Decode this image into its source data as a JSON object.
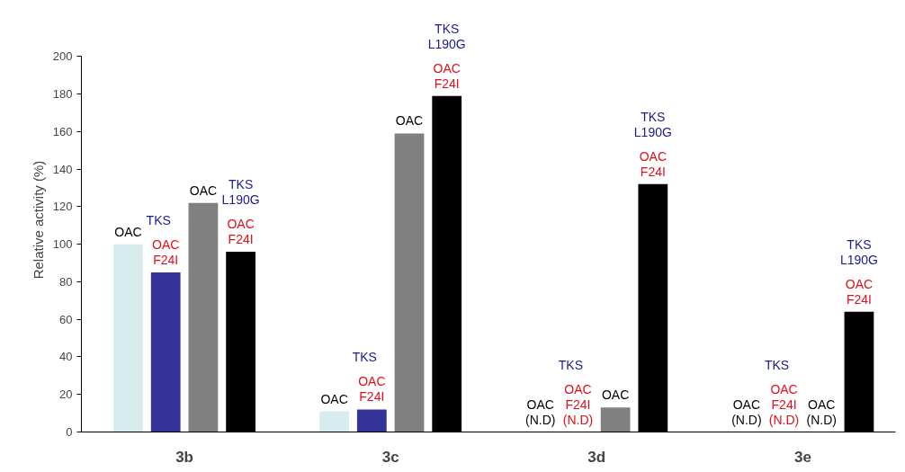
{
  "chart_data": {
    "type": "bar",
    "ylabel": "Relative activity (%)",
    "categories": [
      "3b",
      "3c",
      "3d",
      "3e"
    ],
    "ylim": [
      0,
      200
    ],
    "yticks": [
      0,
      20,
      40,
      60,
      80,
      100,
      120,
      140,
      160,
      180,
      200
    ],
    "grid": false,
    "annotations": [
      "TKS",
      "TKS\nL190G",
      "TKS",
      "TKS\nL190G",
      "TKS",
      "TKS\nL190G",
      "TKS",
      "TKS\nL190G"
    ],
    "series": [
      {
        "color": "#d6ecee",
        "values": [
          100,
          11,
          null,
          null
        ],
        "value_labels": [
          "OAC",
          "OAC",
          "OAC\n(N.D)",
          "OAC\n(N.D)"
        ]
      },
      {
        "color": "#333399",
        "values": [
          85,
          12,
          null,
          null
        ],
        "value_labels": [
          "OAC\nF24I",
          "OAC\nF24I",
          "OAC\nF24I\n(N.D)",
          "OAC\nF24I\n(N.D)"
        ]
      },
      {
        "color": "#808080",
        "values": [
          122,
          159,
          13,
          null
        ],
        "value_labels": [
          "OAC",
          "OAC",
          "OAC",
          "OAC\n(N.D)"
        ]
      },
      {
        "color": "#000000",
        "values": [
          96,
          179,
          132,
          64
        ],
        "value_labels": [
          "OAC\nF24I",
          "OAC\nF24I",
          "OAC\nF24I",
          "OAC\nF24I"
        ]
      }
    ]
  }
}
